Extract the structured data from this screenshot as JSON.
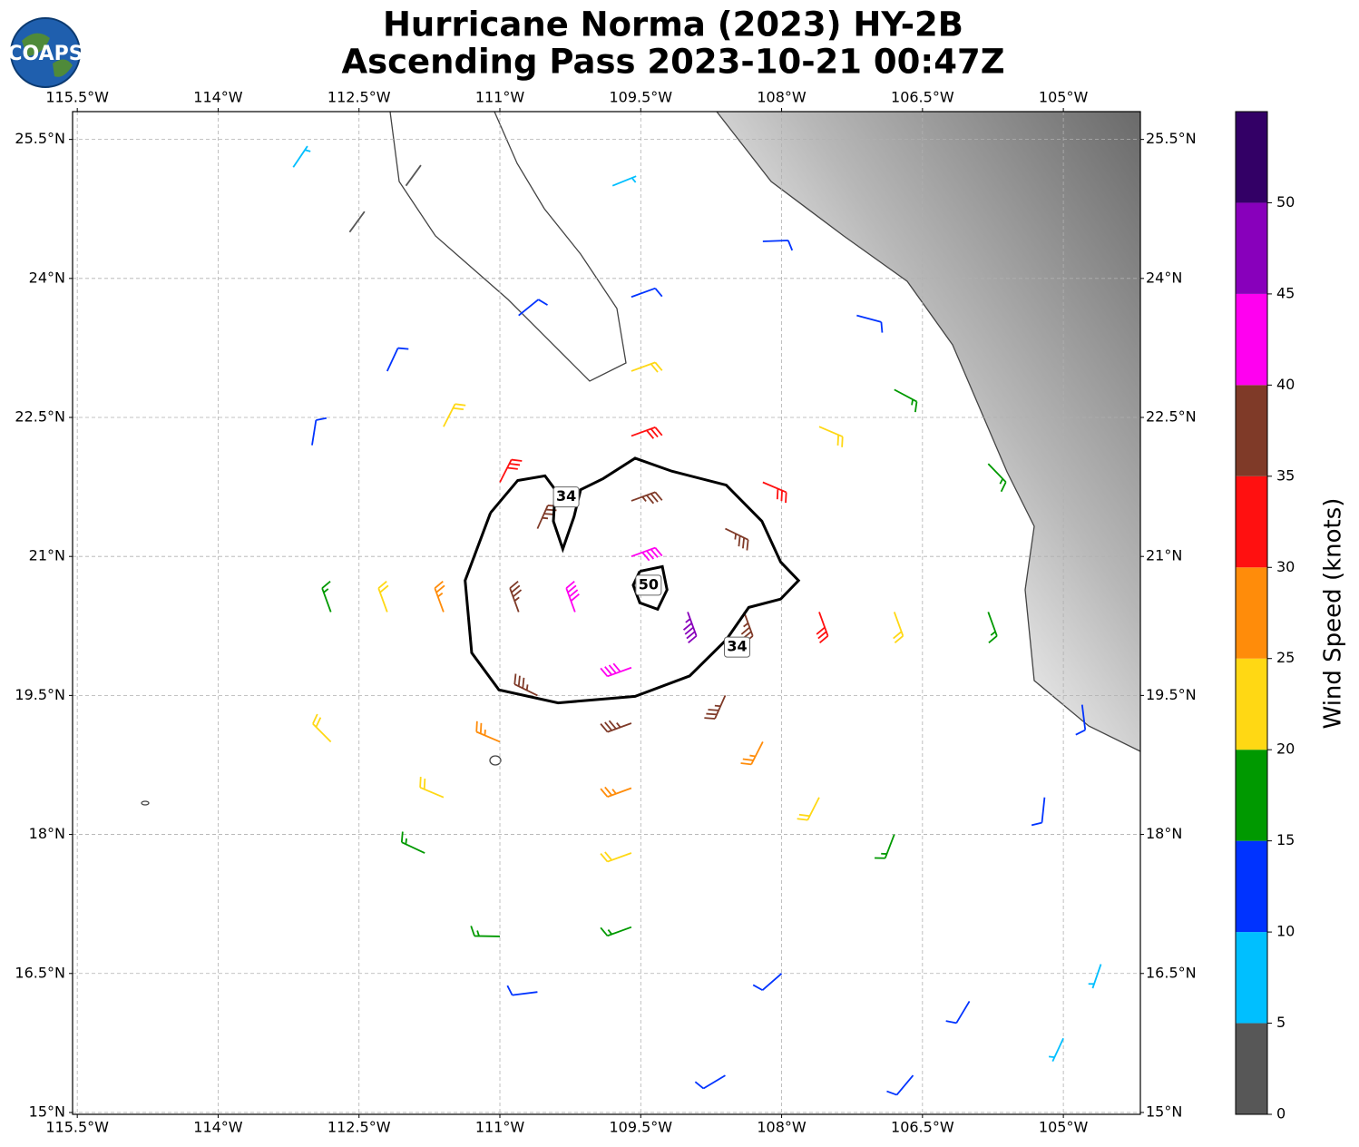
{
  "map": {
    "title": [
      "Hurricane Norma (2023) HY-2B",
      "Ascending Pass 2023-10-21 00:47Z"
    ],
    "logo": "COAPS",
    "xlim": [
      -115.55,
      -104.18
    ],
    "ylim": [
      14.98,
      25.8
    ],
    "xticks": [
      {
        "value": -115.5,
        "label": "115.5°W"
      },
      {
        "value": -114,
        "label": "114°W"
      },
      {
        "value": -112.5,
        "label": "112.5°W"
      },
      {
        "value": -111,
        "label": "111°W"
      },
      {
        "value": -109.5,
        "label": "109.5°W"
      },
      {
        "value": -108,
        "label": "108°W"
      },
      {
        "value": -106.5,
        "label": "106.5°W"
      },
      {
        "value": -105,
        "label": "105°W"
      }
    ],
    "yticks": [
      {
        "value": 15,
        "label": "15°N"
      },
      {
        "value": 16.5,
        "label": "16.5°N"
      },
      {
        "value": 18,
        "label": "18°N"
      },
      {
        "value": 19.5,
        "label": "19.5°N"
      },
      {
        "value": 21,
        "label": "21°N"
      },
      {
        "value": 22.5,
        "label": "22.5°N"
      },
      {
        "value": 24,
        "label": "24°N"
      },
      {
        "value": 25.5,
        "label": "25.5°N"
      }
    ],
    "grid": true,
    "barbs": {
      "lon": [
        -109.6,
        -109.0,
        -109.6,
        -110.2,
        -109.6,
        -108.4,
        -109.6,
        -110.8,
        -108.6,
        -110.6,
        -110.6,
        -108.6,
        -109.6,
        -107.6,
        -109.6,
        -111.6,
        -108.2,
        -111.0,
        -111.0,
        -108.2,
        -109.6,
        -106.8,
        -109.6,
        -112.2,
        -107.6,
        -111.6,
        -111.6,
        -107.6,
        -109.6,
        -105.8,
        -109.6,
        -112.8,
        -106.8,
        -112.2,
        -111.8,
        -106.8,
        -105.2,
        -110.6,
        -108.0,
        -106.0,
        -104.6,
        -108.6,
        -106.6,
        -105.0,
        -110.8,
        -108.2,
        -109.8,
        -112.6,
        -113.2,
        -112.0,
        -107.2,
        -105.8,
        -104.8,
        -113.0,
        -112.8,
        -111.0
      ],
      "lat": [
        21.0,
        20.4,
        19.8,
        20.4,
        21.6,
        20.4,
        19.2,
        20.4,
        21.3,
        21.3,
        19.5,
        19.5,
        22.3,
        20.4,
        18.5,
        20.4,
        21.8,
        21.8,
        19.0,
        19.0,
        23.0,
        20.4,
        17.8,
        20.4,
        22.4,
        22.4,
        18.4,
        18.4,
        23.8,
        20.4,
        17.0,
        20.4,
        22.8,
        23.0,
        17.8,
        18.0,
        18.4,
        16.3,
        16.5,
        16.2,
        16.6,
        15.4,
        15.4,
        15.8,
        23.6,
        24.4,
        25.0,
        24.5,
        25.2,
        25.0,
        23.6,
        22.0,
        19.4,
        22.2,
        19.0,
        16.9
      ],
      "speed": [
        42,
        45,
        42,
        41,
        37,
        37,
        37,
        37,
        36,
        37,
        36,
        36,
        32,
        31,
        29,
        28,
        31,
        32,
        29,
        29,
        22,
        24,
        22,
        22,
        22,
        24,
        23,
        23,
        14,
        19,
        17,
        18,
        18,
        13,
        18,
        18,
        14,
        14,
        13,
        12,
        8,
        12,
        11,
        9,
        14,
        13,
        8,
        3,
        8,
        3,
        12,
        16,
        12,
        12,
        22,
        17
      ],
      "dir": [
        70,
        160,
        250,
        340,
        70,
        160,
        250,
        340,
        116,
        24,
        296,
        204,
        70,
        160,
        250,
        340,
        113,
        27,
        293,
        207,
        70,
        160,
        250,
        340,
        113,
        27,
        293,
        207,
        70,
        160,
        250,
        340,
        118,
        25,
        295,
        201,
        186,
        263,
        229,
        211,
        199,
        239,
        220,
        205,
        51,
        88,
        68,
        36,
        34,
        36,
        105,
        136,
        173,
        9,
        315,
        271
      ]
    },
    "contours": [
      {
        "level": 34,
        "lon": [
          -111.1,
          -110.81,
          -110.52,
          -110.41,
          -110.43,
          -110.33,
          -110.21,
          -110.14,
          -109.9,
          -109.56,
          -109.17,
          -108.59,
          -108.21,
          -108.01,
          -107.82,
          -108.01,
          -108.35,
          -108.59,
          -108.98,
          -109.56,
          -110.38,
          -111.01,
          -111.3,
          -111.37,
          -111.1
        ],
        "lat": [
          21.47,
          21.82,
          21.87,
          21.72,
          21.38,
          21.08,
          21.43,
          21.72,
          21.84,
          22.06,
          21.92,
          21.77,
          21.38,
          20.94,
          20.74,
          20.54,
          20.45,
          20.1,
          19.71,
          19.49,
          19.42,
          19.56,
          19.96,
          20.74,
          21.47
        ]
      },
      {
        "level": 50,
        "lon": [
          -109.51,
          -109.27,
          -109.22,
          -109.32,
          -109.51,
          -109.58,
          -109.51
        ],
        "lat": [
          20.84,
          20.89,
          20.64,
          20.43,
          20.5,
          20.69,
          20.84
        ]
      }
    ],
    "colorbar": {
      "label": "Wind Speed (knots)",
      "bounds": [
        0,
        5,
        10,
        15,
        20,
        25,
        30,
        35,
        40,
        45,
        50,
        55
      ],
      "colors": [
        "#575757",
        "#00bfff",
        "#0033ff",
        "#009900",
        "#ffd814",
        "#ff8c0a",
        "#ff1010",
        "#7f3a28",
        "#ff00f0",
        "#8800bb",
        "#330066"
      ],
      "ticks": [
        0,
        5,
        10,
        15,
        20,
        25,
        30,
        35,
        40,
        45,
        50
      ]
    }
  }
}
